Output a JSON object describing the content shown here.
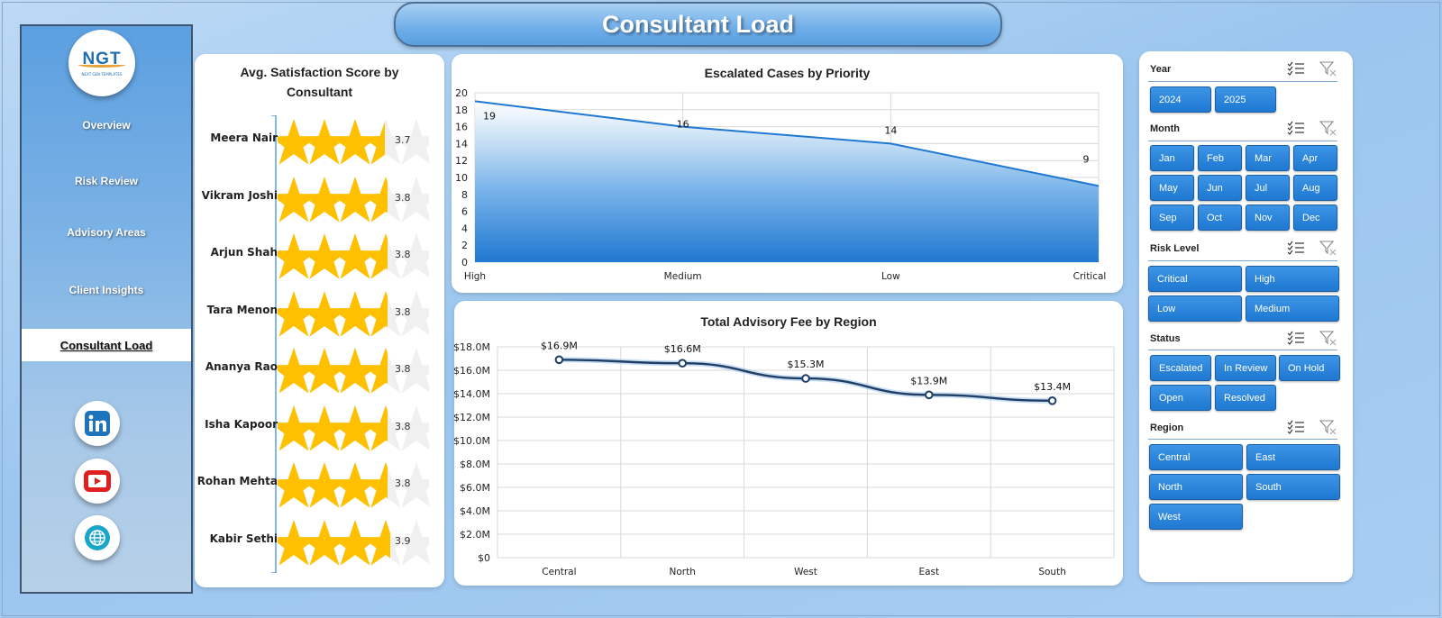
{
  "header": {
    "title": "Consultant Load"
  },
  "logo": {
    "text": "NGT",
    "subtitle": "NEXT GEN TEMPLATES"
  },
  "nav": {
    "items": [
      {
        "label": "Overview"
      },
      {
        "label": "Risk Review"
      },
      {
        "label": "Advisory Areas"
      },
      {
        "label": "Client Insights"
      },
      {
        "label": "Consultant Load",
        "active": true
      }
    ]
  },
  "social": {
    "icons": [
      "linkedin-icon",
      "youtube-icon",
      "globe-icon"
    ]
  },
  "satisfaction": {
    "title_line1": "Avg. Satisfaction Score by",
    "title_line2": "Consultant",
    "star_color": "#FFC000",
    "rows": [
      {
        "name": "Meera Nair",
        "value": "3.7",
        "score": 3.7
      },
      {
        "name": "Vikram Joshi",
        "value": "3.8",
        "score": 3.8
      },
      {
        "name": "Arjun Shah",
        "value": "3.8",
        "score": 3.8
      },
      {
        "name": "Tara Menon",
        "value": "3.8",
        "score": 3.8
      },
      {
        "name": "Ananya Rao",
        "value": "3.8",
        "score": 3.8
      },
      {
        "name": "Isha Kapoor",
        "value": "3.8",
        "score": 3.8
      },
      {
        "name": "Rohan Mehta",
        "value": "3.8",
        "score": 3.8
      },
      {
        "name": "Kabir Sethi",
        "value": "3.9",
        "score": 3.9
      }
    ]
  },
  "chart_data": [
    {
      "type": "area",
      "title": "Escalated Cases  by Priority",
      "categories": [
        "High",
        "Medium",
        "Low",
        "Critical"
      ],
      "values": [
        19,
        16,
        14,
        9
      ],
      "yticks": [
        "0",
        "2",
        "4",
        "6",
        "8",
        "10",
        "12",
        "14",
        "16",
        "18",
        "20"
      ],
      "ylim": [
        0,
        20
      ],
      "grid": true,
      "color": "#1f78d1"
    },
    {
      "type": "line",
      "title": "Total Advisory Fee by Region",
      "categories": [
        "Central",
        "North",
        "West",
        "East",
        "South"
      ],
      "values": [
        16.9,
        16.6,
        15.3,
        13.9,
        13.4
      ],
      "labels": [
        "$16.9M",
        "$16.6M",
        "$15.3M",
        "$13.9M",
        "$13.4M"
      ],
      "yticks": [
        "$0",
        "$2.0M",
        "$4.0M",
        "$6.0M",
        "$8.0M",
        "$10.0M",
        "$12.0M",
        "$14.0M",
        "$16.0M",
        "$18.0M"
      ],
      "ylim": [
        0,
        18
      ],
      "grid": true,
      "color": "#1f3f66"
    }
  ],
  "slicers": {
    "year": {
      "title": "Year",
      "options": [
        "2024",
        "2025"
      ]
    },
    "month": {
      "title": "Month",
      "options": [
        "Jan",
        "Feb",
        "Mar",
        "Apr",
        "May",
        "Jun",
        "Jul",
        "Aug",
        "Sep",
        "Oct",
        "Nov",
        "Dec"
      ]
    },
    "risk": {
      "title": "Risk Level",
      "options": [
        "Critical",
        "High",
        "Low",
        "Medium"
      ]
    },
    "status": {
      "title": "Status",
      "options": [
        "Escalated",
        "In Review",
        "On Hold",
        "Open",
        "Resolved"
      ]
    },
    "region": {
      "title": "Region",
      "options": [
        "Central",
        "East",
        "North",
        "South",
        "West"
      ]
    }
  }
}
